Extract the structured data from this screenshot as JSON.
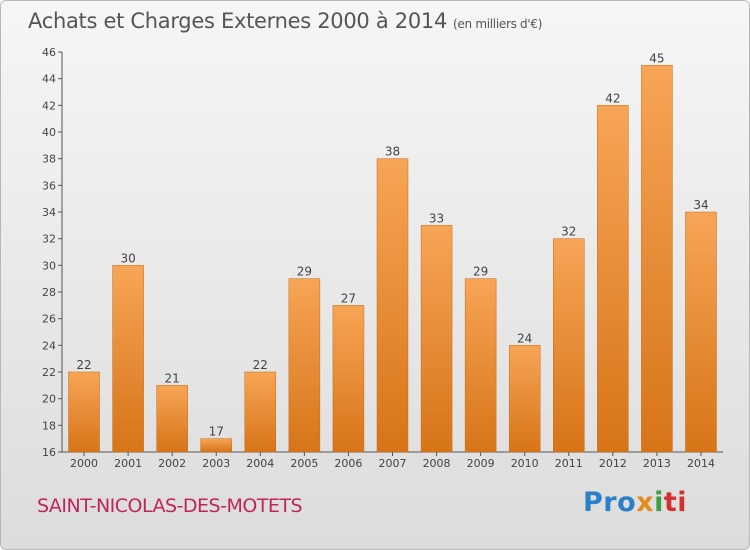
{
  "chart_data": {
    "type": "bar",
    "title": "Achats et Charges Externes 2000 à 2014",
    "subtitle": "(en milliers d'€)",
    "categories": [
      "2000",
      "2001",
      "2002",
      "2003",
      "2004",
      "2005",
      "2006",
      "2007",
      "2008",
      "2009",
      "2010",
      "2011",
      "2012",
      "2013",
      "2014"
    ],
    "values": [
      22,
      30,
      21,
      17,
      22,
      29,
      27,
      38,
      33,
      29,
      24,
      32,
      42,
      45,
      34
    ],
    "ylim": [
      16,
      46
    ],
    "yticks": [
      16,
      18,
      20,
      22,
      24,
      26,
      28,
      30,
      32,
      34,
      36,
      38,
      40,
      42,
      44,
      46
    ],
    "grid": false,
    "bar_color": "#f0923a"
  },
  "footer": {
    "city": "SAINT-NICOLAS-DES-MOTETS",
    "logo": {
      "p1": "Pro",
      "p2": "x",
      "p3": "i",
      "p4": "ti"
    }
  }
}
